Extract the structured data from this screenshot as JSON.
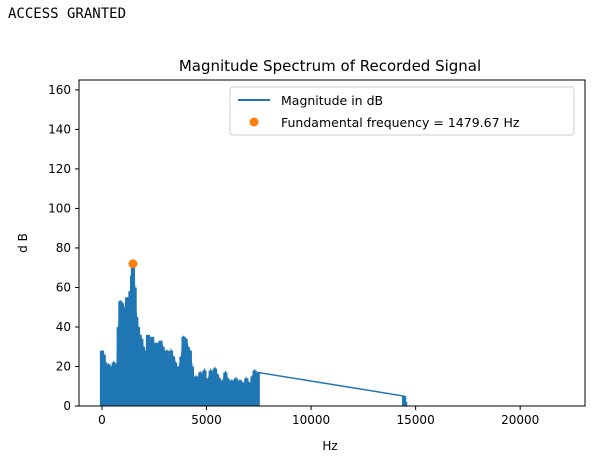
{
  "output": {
    "text": "ACCESS GRANTED"
  },
  "chart_data": {
    "type": "line",
    "title": "Magnitude Spectrum of Recorded Signal",
    "xlabel": "Hz",
    "ylabel": "d B",
    "xlim": [
      -1100,
      23100
    ],
    "ylim": [
      0,
      165
    ],
    "xticks": [
      0,
      5000,
      10000,
      15000,
      20000
    ],
    "yticks": [
      0,
      20,
      40,
      60,
      80,
      100,
      120,
      140,
      160
    ],
    "grid": false,
    "legend_position": "top-right",
    "series": [
      {
        "name": "Magnitude in dB",
        "color": "#1f77b4",
        "x": [
          0,
          80,
          160,
          240,
          320,
          400,
          480,
          560,
          640,
          720,
          800,
          880,
          960,
          1040,
          1120,
          1200,
          1280,
          1360,
          1440,
          1480,
          1560,
          1640,
          1720,
          1800,
          1880,
          1960,
          2040,
          2120,
          2200,
          2300,
          2400,
          2500,
          2600,
          2700,
          2800,
          2900,
          3000,
          3100,
          3200,
          3300,
          3400,
          3500,
          3600,
          3700,
          3800,
          3900,
          4000,
          4100,
          4200,
          4300,
          4400,
          4500,
          4600,
          4700,
          4800,
          4900,
          5000,
          5100,
          5200,
          5300,
          5400,
          5500,
          5600,
          5700,
          5800,
          5900,
          6000,
          6100,
          6200,
          6300,
          6400,
          6500,
          6600,
          6700,
          6800,
          6900,
          7000,
          7100,
          7200,
          7300,
          7400,
          7450,
          14450,
          14500,
          14550
        ],
        "y": [
          28,
          26,
          22,
          20,
          21,
          18,
          20,
          22,
          19,
          21,
          40,
          53,
          52,
          50,
          48,
          55,
          52,
          58,
          66,
          72,
          60,
          45,
          40,
          36,
          34,
          30,
          28,
          25,
          36,
          30,
          35,
          28,
          32,
          25,
          33,
          30,
          27,
          28,
          22,
          28,
          25,
          22,
          18,
          20,
          25,
          35,
          34,
          30,
          28,
          20,
          12,
          15,
          13,
          17,
          15,
          18,
          12,
          14,
          18,
          15,
          19,
          16,
          14,
          12,
          13,
          17,
          14,
          11,
          13,
          12,
          14,
          11,
          13,
          12,
          10,
          14,
          12,
          11,
          15,
          18,
          16,
          17,
          5,
          2,
          0
        ]
      },
      {
        "name": "Fundamental frequency = 1479.67 Hz",
        "color": "#ff7f0e",
        "marker": "o",
        "x": [
          1479.67
        ],
        "y": [
          72
        ]
      }
    ]
  }
}
